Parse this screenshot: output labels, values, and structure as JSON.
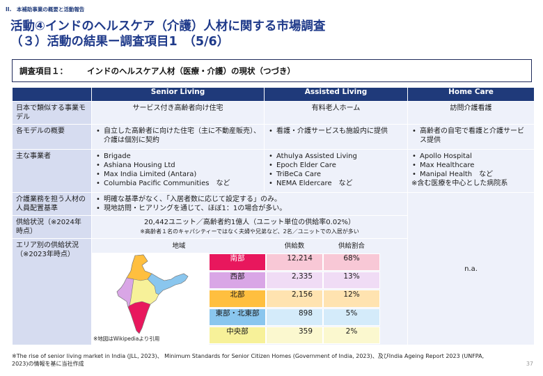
{
  "header": {
    "section": "II.　本補助事業の概要と活動報告",
    "title_line1": "活動④インドのヘルスケア（介護）人材に関する市場調査",
    "title_line2": "（３）活動の結果ー調査項目1　（5/6）"
  },
  "subtitle": {
    "label": "調査項目１：",
    "text": "インドのヘルスケア人材（医療・介護）の現状（つづき）"
  },
  "table": {
    "columns": [
      "Senior Living",
      "Assisted Living",
      "Home Care"
    ],
    "rows": {
      "model": {
        "label": "日本で類似する事業モデル",
        "values": [
          "サービス付き高齢者向け住宅",
          "有料老人ホーム",
          "訪問介護看護"
        ]
      },
      "overview": {
        "label": "各モデルの概要",
        "senior": [
          "自立した高齢者に向けた住宅（主に不動産販売）、介護は個別に契約"
        ],
        "assisted": [
          "看護・介護サービスも施設内に提供"
        ],
        "home": [
          "高齢者の自宅で看護と介護サービス提供"
        ]
      },
      "operators": {
        "label": "主な事業者",
        "senior": [
          "Brigade",
          "Ashiana Housing Ltd",
          "Max India Limited (Antara)",
          "Columbia Pacific Communities　など"
        ],
        "assisted": [
          "Athulya Assisted Living",
          "Epoch Elder Care",
          "TriBeCa Care",
          "NEMA Eldercare　など"
        ],
        "home": [
          "Apollo Hospital",
          "Max Healthcare",
          "Manipal Health　など"
        ],
        "home_note": "※含む医療を中心とした病院系"
      },
      "staffing": {
        "label": "介護業務を担う人材の人員配置基準",
        "items": [
          "明確な基準がなく、「入居者数に応じて設定する」のみ。",
          "現地訪問・ヒアリングを通じて、ほぼ1：1の場合が多い。"
        ]
      },
      "supply": {
        "label": "供給状況（※2024年時点）",
        "main": "20,442ユニット／高齢者約1億人（ユニット単位の供給率0.02%）",
        "note": "※高齢者１名のキャパシティーではなく夫婦や兄弟など、2名／ユニットでの入居が多い"
      },
      "area": {
        "label": "エリア別の供給状況（※2023年時点）",
        "headers": [
          "地域",
          "供給数",
          "供給割合"
        ],
        "map_note": "※地図はWikipediaより引用",
        "regions": [
          {
            "name": "南部",
            "count": "12,214",
            "pct": "68%"
          },
          {
            "name": "西部",
            "count": "2,335",
            "pct": "13%"
          },
          {
            "name": "北部",
            "count": "2,156",
            "pct": "12%"
          },
          {
            "name": "東部・北東部",
            "count": "898",
            "pct": "5%"
          },
          {
            "name": "中央部",
            "count": "359",
            "pct": "2%"
          }
        ],
        "home_value": "n.a."
      }
    }
  },
  "footnote": "※The rise of senior living market in India (JLL, 2023)、 Minimum Standards for Senior Citizen Homes (Government of India, 2023)、及びIndia Ageing Report 2023 (UNFPA, 2023)の情報を基に当社作成",
  "page_number": "37",
  "colors": {
    "navy": "#1f3a7a",
    "south": "#e8175d",
    "west": "#d9a6e6",
    "north": "#ffbf3f",
    "east": "#8ac6ee",
    "central": "#f7f199"
  }
}
